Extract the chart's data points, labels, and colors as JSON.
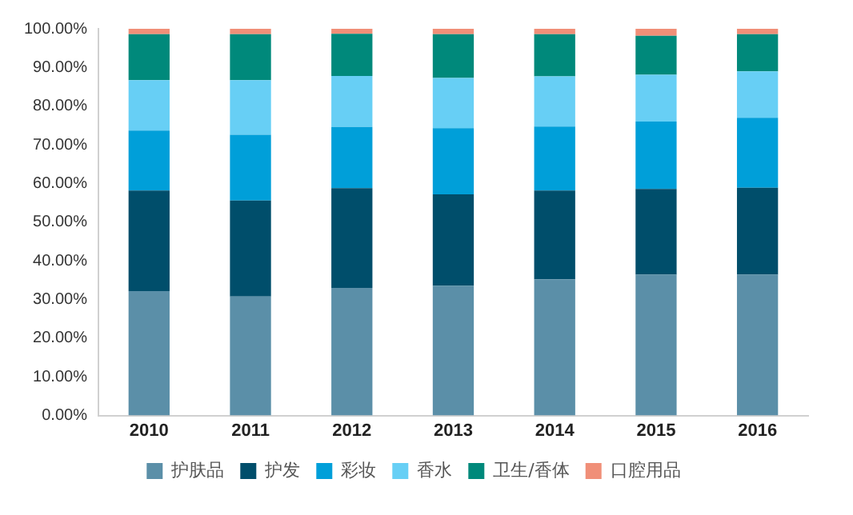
{
  "chart_data": {
    "type": "bar",
    "stacked": true,
    "categories": [
      "2010",
      "2011",
      "2012",
      "2013",
      "2014",
      "2015",
      "2016"
    ],
    "series": [
      {
        "name": "护肤品",
        "color": "#5b8fa8",
        "values": [
          32.2,
          30.8,
          33,
          33.5,
          35.2,
          36.4,
          36.4
        ]
      },
      {
        "name": "护发",
        "color": "#004e6b",
        "values": [
          26,
          24.8,
          25.8,
          23.7,
          23,
          22.2,
          22.5
        ]
      },
      {
        "name": "彩妆",
        "color": "#009fd9",
        "values": [
          15.5,
          17,
          15.8,
          17.1,
          16.5,
          17.4,
          18.1
        ]
      },
      {
        "name": "香水",
        "color": "#67cff5",
        "values": [
          13,
          14.1,
          13.2,
          13,
          13,
          12.1,
          12
        ]
      },
      {
        "name": "卫生/香体",
        "color": "#00897b",
        "values": [
          11.9,
          11.9,
          10.9,
          11.3,
          10.9,
          10.1,
          9.6
        ]
      },
      {
        "name": "口腔用品",
        "color": "#f08f78",
        "values": [
          1.4,
          1.4,
          1.3,
          1.4,
          1.4,
          1.8,
          1.4
        ]
      }
    ],
    "ylim": [
      0,
      100
    ],
    "yticks": [
      {
        "value": 0,
        "label": "0.00%"
      },
      {
        "value": 10,
        "label": "10.00%"
      },
      {
        "value": 20,
        "label": "20.00%"
      },
      {
        "value": 30,
        "label": "30.00%"
      },
      {
        "value": 40,
        "label": "40.00%"
      },
      {
        "value": 50,
        "label": "50.00%"
      },
      {
        "value": 60,
        "label": "60.00%"
      },
      {
        "value": 70,
        "label": "70.00%"
      },
      {
        "value": 80,
        "label": "80.00%"
      },
      {
        "value": 90,
        "label": "90.00%"
      },
      {
        "value": 100,
        "label": "100.00%"
      }
    ],
    "legend": "bottom",
    "grid": false
  }
}
